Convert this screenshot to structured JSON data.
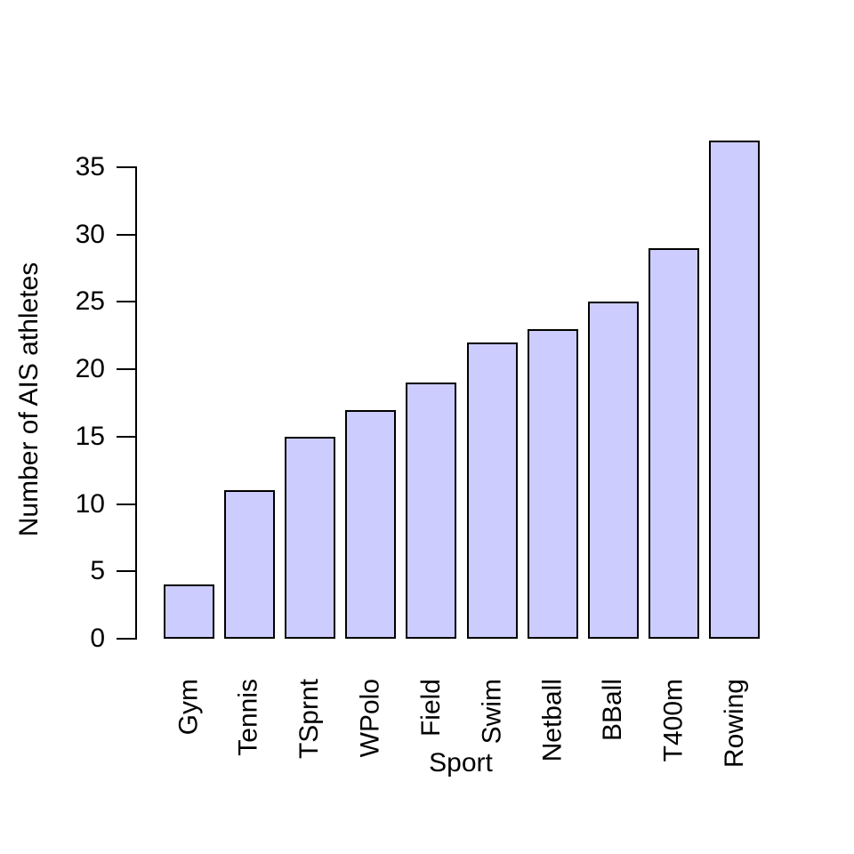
{
  "chart_data": {
    "type": "bar",
    "title": "",
    "xlabel": "Sport",
    "ylabel": "Number of AIS athletes",
    "categories": [
      "Gym",
      "Tennis",
      "TSprnt",
      "WPolo",
      "Field",
      "Swim",
      "Netball",
      "BBall",
      "T400m",
      "Rowing"
    ],
    "values": [
      4,
      11,
      15,
      17,
      19,
      22,
      23,
      25,
      29,
      37
    ],
    "yticks": [
      0,
      5,
      10,
      15,
      20,
      25,
      30,
      35
    ],
    "ylim": [
      0,
      37
    ],
    "grid": false,
    "legend": "none",
    "colors": {
      "bar_fill": "#ccccff",
      "bar_border": "#000000",
      "axis": "#000000",
      "background": "#ffffff"
    }
  }
}
